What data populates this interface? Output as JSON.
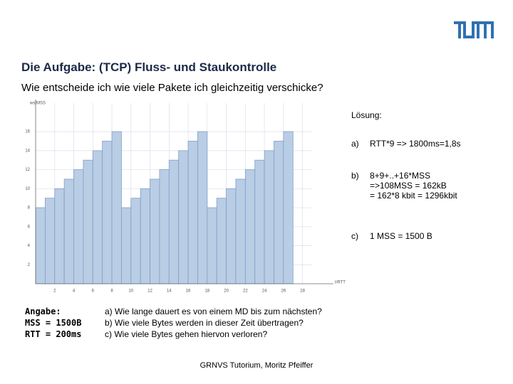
{
  "header": {
    "title": "Die Aufgabe: (TCP) Fluss- und Staukontrolle",
    "subtitle": "Wie entscheide ich wie viele Pakete ich gleichzeitig verschicke?"
  },
  "chart_data": {
    "type": "bar",
    "y_label": "ws/MSS",
    "x_label": "t/RTT",
    "x": [
      0,
      1,
      2,
      3,
      4,
      5,
      6,
      7,
      8,
      9,
      10,
      11,
      12,
      13,
      14,
      15,
      16,
      17,
      18,
      19,
      20,
      21,
      22,
      23,
      24,
      25,
      26
    ],
    "values": [
      8,
      9,
      10,
      11,
      12,
      13,
      14,
      15,
      16,
      8,
      9,
      10,
      11,
      12,
      13,
      14,
      15,
      16,
      8,
      9,
      10,
      11,
      12,
      13,
      14,
      15,
      16
    ],
    "color": "#b9cde5",
    "xlim": [
      0,
      29
    ],
    "ylim": [
      0,
      19
    ],
    "xticks": [
      2,
      4,
      6,
      8,
      10,
      12,
      14,
      16,
      18,
      20,
      22,
      24,
      26,
      28
    ],
    "yticks": [
      2,
      4,
      6,
      8,
      10,
      12,
      14,
      16
    ],
    "grid": true
  },
  "solution": {
    "heading": "Lösung:",
    "items": [
      {
        "label": "a)",
        "lines": [
          "RTT*9 => 1800ms=1,8s"
        ]
      },
      {
        "label": "b)",
        "lines": [
          "8+9+..+16*MSS",
          "=>108MSS = 162kB",
          "= 162*8 kbit = 1296kbit"
        ]
      },
      {
        "label": "c)",
        "lines": [
          "1 MSS = 1500 B"
        ]
      }
    ]
  },
  "given": [
    "Angabe:",
    "MSS = 1500B",
    "RTT = 200ms"
  ],
  "questions": [
    "a) Wie lange dauert es von einem MD bis zum nächsten?",
    "b) Wie viele Bytes werden in dieser Zeit übertragen?",
    "c) Wie viele Bytes gehen hiervon verloren?"
  ],
  "footer": "GRNVS Tutorium, Moritz Pfeiffer"
}
